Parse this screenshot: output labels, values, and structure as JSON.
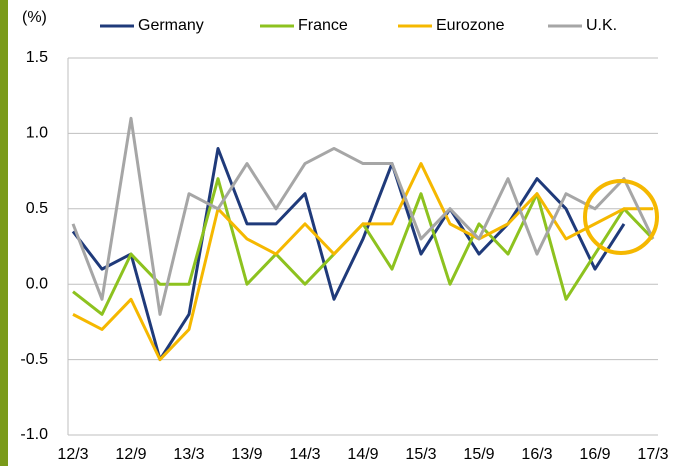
{
  "chart_data": {
    "type": "line",
    "unit_label": "(%)",
    "categories": [
      "12/3",
      null,
      "12/9",
      null,
      "13/3",
      null,
      "13/9",
      null,
      "14/3",
      null,
      "14/9",
      null,
      "15/3",
      null,
      "15/9",
      null,
      "16/3",
      null,
      "16/9",
      null,
      "17/3"
    ],
    "series": [
      {
        "name": "Germany",
        "color": "#1f3a7a",
        "values": [
          0.35,
          0.1,
          0.2,
          -0.5,
          -0.2,
          0.9,
          0.4,
          0.4,
          0.6,
          -0.1,
          0.3,
          0.8,
          0.2,
          0.5,
          0.2,
          0.4,
          0.7,
          0.5,
          0.1,
          0.4,
          null
        ]
      },
      {
        "name": "France",
        "color": "#8dc21f",
        "values": [
          -0.05,
          -0.2,
          0.2,
          0.0,
          0.0,
          0.7,
          0.0,
          0.2,
          0.0,
          0.2,
          0.4,
          0.1,
          0.6,
          0.0,
          0.4,
          0.2,
          0.6,
          -0.1,
          0.2,
          0.5,
          0.3
        ]
      },
      {
        "name": "Eurozone",
        "color": "#f5b800",
        "values": [
          -0.2,
          -0.3,
          -0.1,
          -0.5,
          -0.3,
          0.5,
          0.3,
          0.2,
          0.4,
          0.2,
          0.4,
          0.4,
          0.8,
          0.4,
          0.3,
          0.4,
          0.6,
          0.3,
          0.4,
          0.5,
          0.5
        ]
      },
      {
        "name": "U.K.",
        "color": "#a6a6a6",
        "values": [
          0.4,
          -0.1,
          1.1,
          -0.2,
          0.6,
          0.5,
          0.8,
          0.5,
          0.8,
          0.9,
          0.8,
          0.8,
          0.3,
          0.5,
          0.3,
          0.7,
          0.2,
          0.6,
          0.5,
          0.7,
          0.3
        ]
      }
    ],
    "ylim": [
      -1,
      1.5
    ],
    "yticks": [
      1.5,
      {
        "value": 1,
        "label": "1.0"
      },
      0.5,
      {
        "value": 0,
        "label": "0.0"
      },
      -0.5,
      {
        "value": -1,
        "label": "-1.0"
      }
    ],
    "grid": true
  }
}
